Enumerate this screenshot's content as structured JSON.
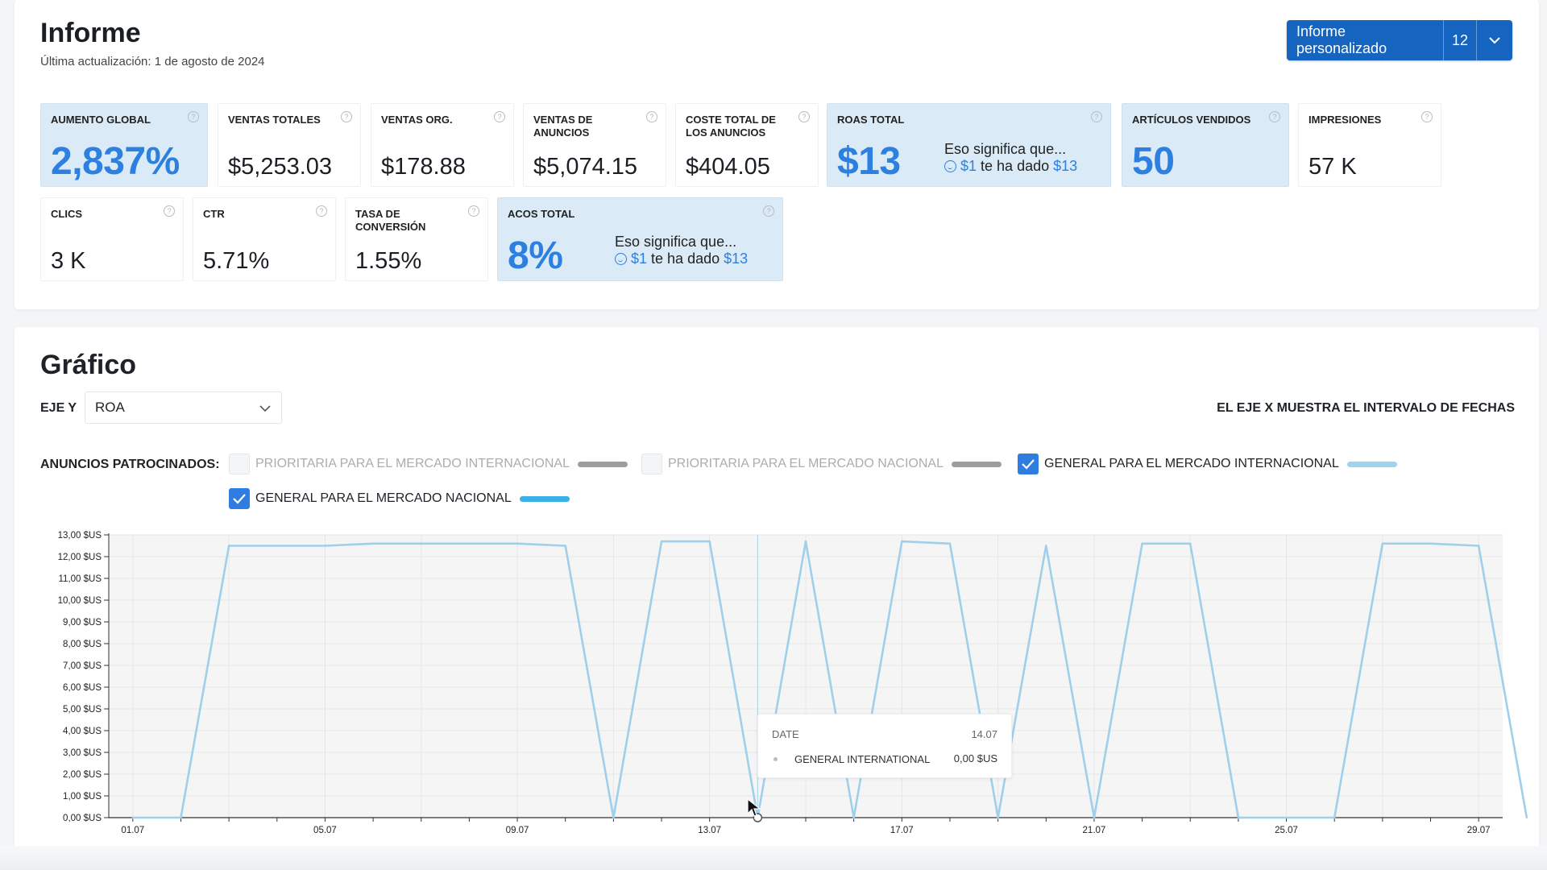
{
  "header": {
    "title": "Informe",
    "last_update": "Última actualización: 1 de agosto de 2024",
    "report_button_label": "Informe personalizado",
    "report_button_count": "12"
  },
  "metrics": {
    "aumento_global": {
      "label": "AUMENTO GLOBAL",
      "value": "2,837%"
    },
    "ventas_totales": {
      "label": "VENTAS TOTALES",
      "value": "$5,253.03"
    },
    "ventas_org": {
      "label": "VENTAS ORG.",
      "value": "$178.88"
    },
    "ventas_anuncios": {
      "label": "VENTAS DE ANUNCIOS",
      "value": "$5,074.15"
    },
    "coste_anuncios": {
      "label": "COSTE TOTAL DE LOS ANUNCIOS",
      "value": "$404.05"
    },
    "roas_total": {
      "label": "ROAS TOTAL",
      "value": "$13",
      "meaning": "Eso significa que...",
      "meaning_a": "$1",
      "meaning_b": "te ha dado",
      "meaning_c": "$13"
    },
    "articulos_vendidos": {
      "label": "ARTÍCULOS VENDIDOS",
      "value": "50"
    },
    "impresiones": {
      "label": "IMPRESIONES",
      "value": "57 K"
    },
    "clics": {
      "label": "CLICS",
      "value": "3 K"
    },
    "ctr": {
      "label": "CTR",
      "value": "5.71%"
    },
    "tasa_conversion": {
      "label": "TASA DE CONVERSIÓN",
      "value": "1.55%"
    },
    "acos_total": {
      "label": "ACOS TOTAL",
      "value": "8%",
      "meaning": "Eso significa que...",
      "meaning_a": "$1",
      "meaning_b": "te ha dado",
      "meaning_c": "$13"
    }
  },
  "chart_section": {
    "title": "Gráfico",
    "y_axis_label": "EJE Y",
    "y_axis_selected": "ROA",
    "x_axis_note": "EL EJE X MUESTRA EL INTERVALO DE FECHAS",
    "legend_label": "ANUNCIOS PATROCINADOS:",
    "legend": [
      {
        "label": "PRIORITARIA PARA EL MERCADO INTERNACIONAL",
        "checked": false,
        "color": "#9e9e9e"
      },
      {
        "label": "PRIORITARIA PARA EL MERCADO NACIONAL",
        "checked": false,
        "color": "#9e9e9e"
      },
      {
        "label": "GENERAL PARA EL MERCADO INTERNACIONAL",
        "checked": true,
        "color": "#9dd4ee"
      },
      {
        "label": "GENERAL PARA EL MERCADO NACIONAL",
        "checked": true,
        "color": "#3ab1e6"
      }
    ]
  },
  "tooltip": {
    "date_label": "DATE",
    "date_value": "14.07",
    "series": "GENERAL INTERNATIONAL",
    "value": "0,00 $US"
  },
  "colors": {
    "accent": "#2d7fe0",
    "button": "#1565c0",
    "highlight_card": "#daebf7",
    "line": "#9fd0ea"
  },
  "chart_data": {
    "type": "line",
    "ylabel": "",
    "xlabel": "",
    "ylim": [
      0,
      13
    ],
    "xlim": [
      0.5,
      29.5
    ],
    "y_ticks": [
      "0,00 $US",
      "1,00 $US",
      "2,00 $US",
      "3,00 $US",
      "4,00 $US",
      "5,00 $US",
      "6,00 $US",
      "7,00 $US",
      "8,00 $US",
      "9,00 $US",
      "10,00 $US",
      "11,00 $US",
      "12,00 $US",
      "13,00 $US"
    ],
    "x_tick_labels": [
      {
        "day": 1,
        "label": "01.07"
      },
      {
        "day": 5,
        "label": "05.07"
      },
      {
        "day": 9,
        "label": "09.07"
      },
      {
        "day": 13,
        "label": "13.07"
      },
      {
        "day": 17,
        "label": "17.07"
      },
      {
        "day": 21,
        "label": "21.07"
      },
      {
        "day": 25,
        "label": "25.07"
      },
      {
        "day": 29,
        "label": "29.07"
      }
    ],
    "series": [
      {
        "name": "GENERAL INTERNATIONAL",
        "color": "#9fd0ea",
        "x": [
          "01.07",
          "02.07",
          "03.07",
          "05.07",
          "06.07",
          "07.07",
          "08.07",
          "09.07",
          "10.07",
          "11.07",
          "12.07",
          "13.07",
          "14.07",
          "15.07",
          "16.07",
          "17.07",
          "18.07",
          "19.07",
          "20.07",
          "21.07",
          "22.07",
          "23.07",
          "24.07",
          "25.07",
          "26.07",
          "27.07",
          "28.07",
          "29.07",
          "30.07"
        ],
        "values": [
          0,
          0,
          12.5,
          12.5,
          12.6,
          12.6,
          12.6,
          12.6,
          12.5,
          0,
          12.7,
          12.7,
          0,
          12.7,
          0,
          12.7,
          12.6,
          0,
          12.5,
          0,
          12.6,
          12.6,
          0,
          0,
          0,
          12.6,
          12.6,
          12.5,
          0
        ]
      }
    ]
  }
}
